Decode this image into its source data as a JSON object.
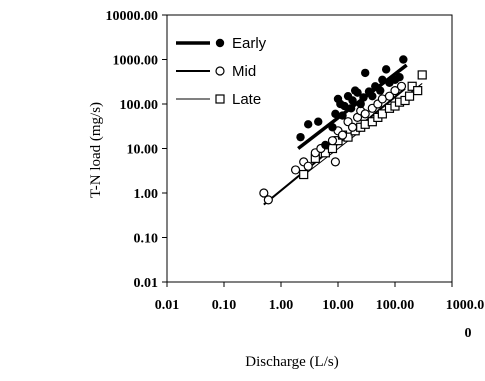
{
  "chart_data": {
    "type": "scatter",
    "x_scale": "log",
    "y_scale": "log",
    "xlabel": "Discharge (L/s)",
    "ylabel": "T-N load (mg/s)",
    "xlim": [
      0.01,
      1000
    ],
    "ylim": [
      0.01,
      10000
    ],
    "x_tick_labels": [
      "0.01",
      "0.10",
      "1.00",
      "10.00",
      "100.00",
      "1000.0",
      "0"
    ],
    "y_tick_labels": [
      "0.01",
      "0.10",
      "1.00",
      "10.00",
      "100.00",
      "1000.00",
      "10000.00"
    ],
    "grid": false,
    "legend_position": "top-left",
    "series": [
      {
        "name": "Early",
        "marker": "filled-circle",
        "line_style": "thick",
        "fit": [
          [
            2.0,
            10.0
          ],
          [
            160,
            750
          ]
        ],
        "points": [
          [
            2.2,
            18
          ],
          [
            3,
            35
          ],
          [
            4.5,
            40
          ],
          [
            6,
            12
          ],
          [
            8,
            30
          ],
          [
            9,
            60
          ],
          [
            10,
            130
          ],
          [
            11,
            100
          ],
          [
            12,
            55
          ],
          [
            13,
            90
          ],
          [
            15,
            150
          ],
          [
            17,
            80
          ],
          [
            18,
            120
          ],
          [
            20,
            200
          ],
          [
            22,
            180
          ],
          [
            25,
            100
          ],
          [
            28,
            140
          ],
          [
            30,
            500
          ],
          [
            35,
            190
          ],
          [
            40,
            150
          ],
          [
            45,
            250
          ],
          [
            55,
            200
          ],
          [
            60,
            350
          ],
          [
            70,
            600
          ],
          [
            80,
            300
          ],
          [
            100,
            350
          ],
          [
            120,
            400
          ],
          [
            140,
            1000
          ]
        ]
      },
      {
        "name": "Mid",
        "marker": "open-circle",
        "line_style": "medium",
        "fit": [
          [
            0.5,
            0.55
          ],
          [
            150,
            220
          ]
        ],
        "points": [
          [
            0.5,
            1.0
          ],
          [
            0.6,
            0.7
          ],
          [
            1.8,
            3.3
          ],
          [
            2.5,
            5
          ],
          [
            3,
            4
          ],
          [
            4,
            8
          ],
          [
            5,
            10
          ],
          [
            8,
            15
          ],
          [
            9,
            5
          ],
          [
            10,
            25
          ],
          [
            12,
            20
          ],
          [
            15,
            40
          ],
          [
            18,
            30
          ],
          [
            22,
            50
          ],
          [
            25,
            70
          ],
          [
            30,
            60
          ],
          [
            40,
            80
          ],
          [
            50,
            100
          ],
          [
            60,
            130
          ],
          [
            80,
            150
          ],
          [
            100,
            200
          ],
          [
            130,
            250
          ]
        ]
      },
      {
        "name": "Late",
        "marker": "open-square",
        "line_style": "thin",
        "fit": [
          [
            2.5,
            2.5
          ],
          [
            300,
            290
          ]
        ],
        "points": [
          [
            2.5,
            2.6
          ],
          [
            4,
            6
          ],
          [
            6,
            8
          ],
          [
            8,
            10
          ],
          [
            10,
            15
          ],
          [
            12,
            20
          ],
          [
            15,
            18
          ],
          [
            20,
            25
          ],
          [
            25,
            30
          ],
          [
            30,
            35
          ],
          [
            40,
            40
          ],
          [
            50,
            50
          ],
          [
            60,
            60
          ],
          [
            80,
            80
          ],
          [
            100,
            90
          ],
          [
            120,
            110
          ],
          [
            150,
            120
          ],
          [
            180,
            150
          ],
          [
            200,
            250
          ],
          [
            250,
            200
          ],
          [
            300,
            450
          ]
        ]
      }
    ]
  }
}
